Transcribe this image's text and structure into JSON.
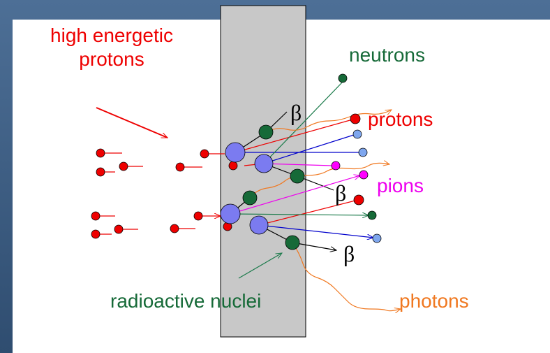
{
  "labels": {
    "source": [
      "high energetic",
      "protons"
    ],
    "neutrons": "neutrons",
    "protons": "protons",
    "pions": "pions",
    "photons": "photons",
    "nuclei": "radioactive nuclei",
    "beta": [
      "β",
      "β",
      "β"
    ]
  }
}
